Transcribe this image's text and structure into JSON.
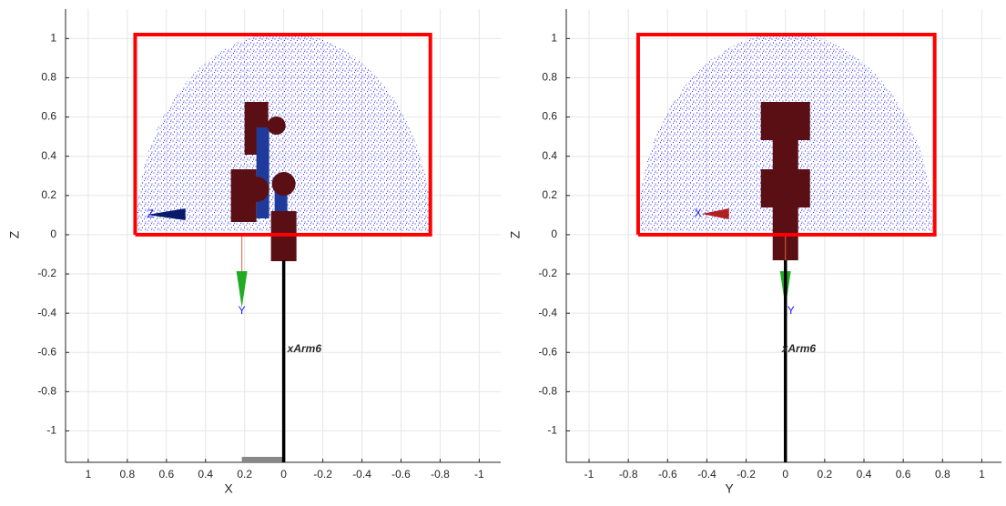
{
  "chart_data": [
    {
      "type": "line",
      "xlabel": "X",
      "ylabel": "Z",
      "xlim": [
        1.116,
        -1.11
      ],
      "ylim": [
        -1.16,
        1.15
      ],
      "xticks": [
        1,
        0.8,
        0.6,
        0.4,
        0.2,
        0,
        -0.2,
        -0.4,
        -0.6,
        -0.8,
        -1
      ],
      "yticks": [
        1,
        0.8,
        0.6,
        0.4,
        0.2,
        0,
        -0.2,
        -0.4,
        -0.6,
        -0.8,
        -1
      ],
      "grid": true,
      "series": [
        {
          "color": "#ff0000",
          "x": [
            0.76,
            -0.75,
            -0.75,
            0.76,
            0.76
          ],
          "values": [
            0,
            0,
            1.02,
            1.02,
            0
          ]
        },
        {
          "color": "#000000",
          "x": [
            0,
            0
          ],
          "values": [
            -0.13,
            -1.16
          ]
        }
      ],
      "annotations": [
        "xArm6",
        "Z",
        "Y"
      ]
    },
    {
      "type": "line",
      "xlabel": "Y",
      "ylabel": "Z",
      "xlim": [
        -1.116,
        1.1
      ],
      "ylim": [
        -1.16,
        1.15
      ],
      "xticks": [
        -1,
        -0.8,
        -0.6,
        -0.4,
        -0.2,
        0,
        0.2,
        0.4,
        0.6,
        0.8,
        1
      ],
      "yticks": [
        1,
        0.8,
        0.6,
        0.4,
        0.2,
        0,
        -0.2,
        -0.4,
        -0.6,
        -0.8,
        -1
      ],
      "grid": true,
      "series": [
        {
          "color": "#ff0000",
          "x": [
            -0.75,
            0.76,
            0.76,
            -0.75,
            -0.75
          ],
          "values": [
            0,
            0,
            1.02,
            1.02,
            0
          ]
        },
        {
          "color": "#000000",
          "x": [
            0,
            0
          ],
          "values": [
            -0.13,
            -1.16
          ]
        }
      ],
      "annotations": [
        "xArm6",
        "X",
        "Y"
      ]
    }
  ]
}
